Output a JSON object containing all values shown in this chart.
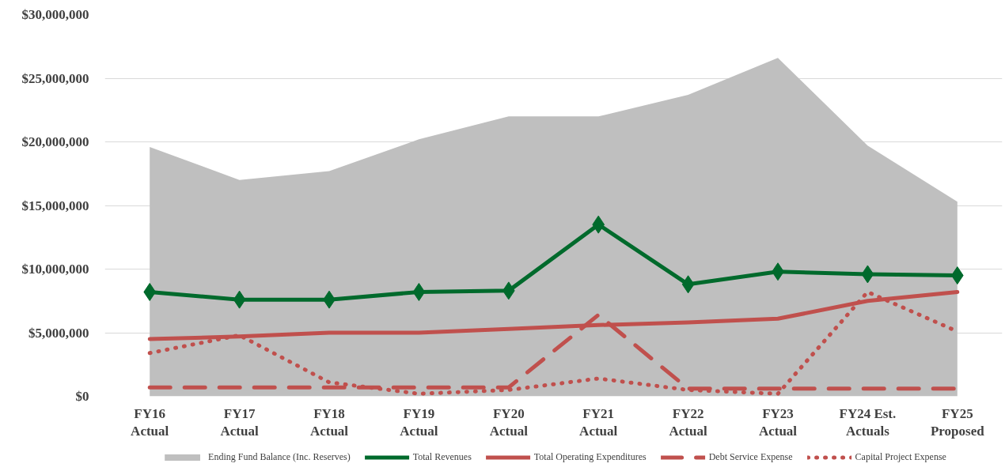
{
  "chart_data": {
    "type": "line",
    "categories": [
      "FY16\nActual",
      "FY17\nActual",
      "FY18\nActual",
      "FY19\nActual",
      "FY20\nActual",
      "FY21\nActual",
      "FY22\nActual",
      "FY23\nActual",
      "FY24 Est.\nActuals",
      "FY25\nProposed"
    ],
    "ylim": [
      0,
      30000000
    ],
    "yticks": [
      {
        "value": 0,
        "label": "$0"
      },
      {
        "value": 5000000,
        "label": "$5,000,000"
      },
      {
        "value": 10000000,
        "label": "$10,000,000"
      },
      {
        "value": 15000000,
        "label": "$15,000,000"
      },
      {
        "value": 20000000,
        "label": "$20,000,000"
      },
      {
        "value": 25000000,
        "label": "$25,000,000"
      },
      {
        "value": 30000000,
        "label": "$30,000,000"
      }
    ],
    "grid": "y",
    "legend": "bottom",
    "series": [
      {
        "name": "Ending Fund Balance (Inc. Reserves)",
        "type": "area",
        "color": "#bfbfbf",
        "values": [
          19600000,
          17000000,
          17700000,
          20200000,
          22000000,
          22000000,
          23700000,
          26600000,
          19700000,
          15300000
        ]
      },
      {
        "name": "Total Revenues",
        "color": "#006a2c",
        "marker": "diamond",
        "line_style": "solid",
        "values": [
          8200000,
          7600000,
          7600000,
          8200000,
          8300000,
          13500000,
          8800000,
          9800000,
          9600000,
          9500000
        ]
      },
      {
        "name": "Total Operating Expenditures",
        "color": "#c0504d",
        "line_style": "solid",
        "values": [
          4500000,
          4700000,
          5000000,
          5000000,
          5300000,
          5600000,
          5800000,
          6100000,
          7500000,
          8200000
        ]
      },
      {
        "name": "Debt Service Expense",
        "color": "#c0504d",
        "line_style": "dashed",
        "values": [
          700000,
          700000,
          700000,
          700000,
          700000,
          6400000,
          600000,
          600000,
          600000,
          600000
        ]
      },
      {
        "name": "Capital Project Expense",
        "color": "#c0504d",
        "line_style": "dotted",
        "values": [
          3400000,
          4800000,
          1100000,
          200000,
          500000,
          1400000,
          500000,
          200000,
          8200000,
          5100000
        ]
      }
    ]
  }
}
